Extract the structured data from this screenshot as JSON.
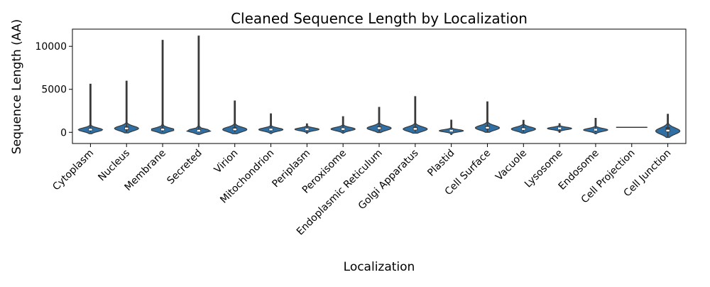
{
  "chart_data": {
    "type": "violin",
    "title": "Cleaned Sequence Length by Localization",
    "xlabel": "Localization",
    "ylabel": "Sequence Length (AA)",
    "ylim": [
      -1300,
      12000
    ],
    "yticks": [
      0,
      5000,
      10000
    ],
    "ytick_labels": [
      "0",
      "5000",
      "10000"
    ],
    "grid": false,
    "legend": "none",
    "colors": {
      "violin_fill": "#2f6fa3",
      "outline": "#3a3a3a",
      "box": "#3a3a3a",
      "median": "#ffffff",
      "frame": "#000000"
    },
    "categories": [
      "Cytoplasm",
      "Nucleus",
      "Membrane",
      "Secreted",
      "Virion",
      "Mitochondrion",
      "Periplasm",
      "Peroxisome",
      "Endoplasmic Reticulum",
      "Golgi Apparatus",
      "Plastid",
      "Cell Surface",
      "Vacuole",
      "Lysosome",
      "Endosome",
      "Cell Projection",
      "Cell Junction"
    ],
    "series": [
      {
        "category": "Cytoplasm",
        "min": 10,
        "q1": 180,
        "median": 320,
        "q3": 500,
        "max": 5600,
        "peak": 300
      },
      {
        "category": "Nucleus",
        "min": 20,
        "q1": 280,
        "median": 450,
        "q3": 680,
        "max": 5950,
        "peak": 450
      },
      {
        "category": "Membrane",
        "min": 20,
        "q1": 200,
        "median": 330,
        "q3": 520,
        "max": 10700,
        "peak": 300
      },
      {
        "category": "Secreted",
        "min": 10,
        "q1": 100,
        "median": 190,
        "q3": 380,
        "max": 11200,
        "peak": 180
      },
      {
        "category": "Virion",
        "min": 20,
        "q1": 180,
        "median": 340,
        "q3": 580,
        "max": 3650,
        "peak": 330
      },
      {
        "category": "Mitochondrion",
        "min": 30,
        "q1": 200,
        "median": 330,
        "q3": 480,
        "max": 2150,
        "peak": 320
      },
      {
        "category": "Periplasm",
        "min": 40,
        "q1": 240,
        "median": 350,
        "q3": 480,
        "max": 980,
        "peak": 350
      },
      {
        "category": "Peroxisome",
        "min": 40,
        "q1": 250,
        "median": 380,
        "q3": 540,
        "max": 1820,
        "peak": 380
      },
      {
        "category": "Endoplasmic Reticulum",
        "min": 40,
        "q1": 320,
        "median": 480,
        "q3": 700,
        "max": 2900,
        "peak": 480
      },
      {
        "category": "Golgi Apparatus",
        "min": 40,
        "q1": 250,
        "median": 400,
        "q3": 650,
        "max": 4150,
        "peak": 380
      },
      {
        "category": "Plastid",
        "min": 40,
        "q1": 100,
        "median": 190,
        "q3": 300,
        "max": 1420,
        "peak": 180
      },
      {
        "category": "Cell Surface",
        "min": 20,
        "q1": 350,
        "median": 530,
        "q3": 760,
        "max": 3550,
        "peak": 520
      },
      {
        "category": "Vacuole",
        "min": 40,
        "q1": 250,
        "median": 380,
        "q3": 600,
        "max": 1400,
        "peak": 380
      },
      {
        "category": "Lysosome",
        "min": 50,
        "q1": 350,
        "median": 460,
        "q3": 560,
        "max": 1000,
        "peak": 450
      },
      {
        "category": "Endosome",
        "min": 30,
        "q1": 170,
        "median": 300,
        "q3": 430,
        "max": 1620,
        "peak": 280
      },
      {
        "category": "Cell Projection",
        "min": 580,
        "q1": 580,
        "median": 580,
        "q3": 580,
        "max": 580,
        "peak": 580
      },
      {
        "category": "Cell Junction",
        "min": -600,
        "q1": 50,
        "median": 200,
        "q3": 600,
        "max": 2100,
        "peak": 150
      }
    ]
  }
}
